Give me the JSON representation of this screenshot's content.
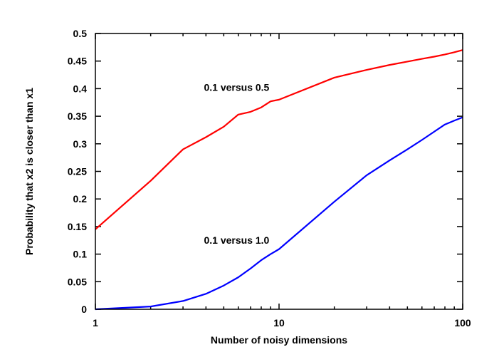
{
  "chart_data": {
    "type": "line",
    "title": "",
    "xlabel": "Number of noisy dimensions",
    "ylabel": "Probability that x2 is closer than x1",
    "xscale": "log",
    "xlim": [
      1,
      100
    ],
    "ylim": [
      0,
      0.5
    ],
    "xticks": [
      1,
      10,
      100
    ],
    "xtick_labels": [
      "1",
      "10",
      "100"
    ],
    "yticks": [
      0,
      0.05,
      0.1,
      0.15,
      0.2,
      0.25,
      0.3,
      0.35,
      0.4,
      0.45,
      0.5
    ],
    "ytick_labels": [
      "0",
      "0.05",
      "0.1",
      "0.15",
      "0.2",
      "0.25",
      "0.3",
      "0.35",
      "0.4",
      "0.45",
      "0.5"
    ],
    "grid": false,
    "legend": "none",
    "series": [
      {
        "name": "0.1 versus 0.5",
        "color": "#ff0000",
        "x": [
          1,
          2,
          3,
          4,
          5,
          6,
          7,
          8,
          9,
          10,
          20,
          30,
          40,
          50,
          60,
          70,
          80,
          90,
          100
        ],
        "y": [
          0.145,
          0.233,
          0.29,
          0.312,
          0.331,
          0.353,
          0.358,
          0.366,
          0.377,
          0.38,
          0.42,
          0.434,
          0.443,
          0.449,
          0.454,
          0.458,
          0.462,
          0.466,
          0.47
        ]
      },
      {
        "name": "0.1 versus 1.0",
        "color": "#0000ff",
        "x": [
          1,
          2,
          3,
          4,
          5,
          6,
          7,
          8,
          9,
          10,
          20,
          30,
          40,
          50,
          60,
          70,
          80,
          90,
          100
        ],
        "y": [
          0.0,
          0.005,
          0.015,
          0.028,
          0.043,
          0.058,
          0.074,
          0.089,
          0.1,
          0.109,
          0.195,
          0.243,
          0.27,
          0.29,
          0.307,
          0.322,
          0.335,
          0.342,
          0.348
        ]
      }
    ],
    "annotations": [
      {
        "text": "0.1 versus 0.5",
        "x": 3.9,
        "y": 0.396
      },
      {
        "text": "0.1 versus 1.0",
        "x": 3.9,
        "y": 0.119
      }
    ]
  }
}
